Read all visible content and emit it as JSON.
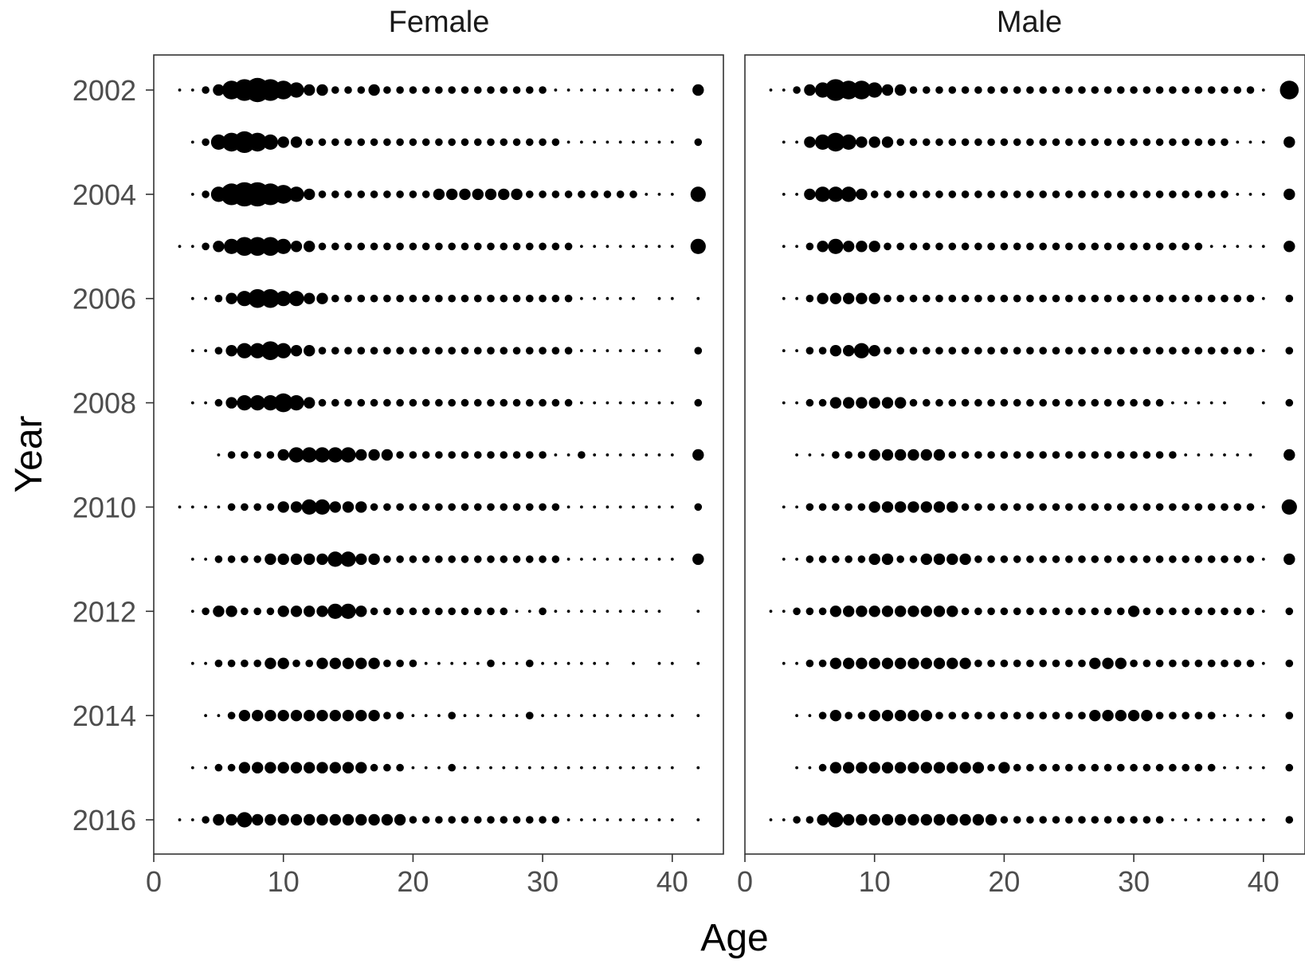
{
  "chart_data": {
    "type": "scatter",
    "subtype": "bubble-facet",
    "xlabel": "Age",
    "ylabel": "Year",
    "xlim": [
      0,
      43
    ],
    "x_ticks": [
      "0",
      "10",
      "20",
      "30",
      "40"
    ],
    "y_ticks": [
      "2002",
      "2004",
      "2006",
      "2008",
      "2010",
      "2012",
      "2014",
      "2016"
    ],
    "years": [
      2002,
      2003,
      2004,
      2005,
      2006,
      2007,
      2008,
      2009,
      2010,
      2011,
      2012,
      2013,
      2014,
      2015,
      2016
    ],
    "ages": [
      2,
      3,
      4,
      5,
      6,
      7,
      8,
      9,
      10,
      11,
      12,
      13,
      14,
      15,
      16,
      17,
      18,
      19,
      20,
      21,
      22,
      23,
      24,
      25,
      26,
      27,
      28,
      29,
      30,
      31,
      32,
      33,
      34,
      35,
      36,
      37,
      38,
      39,
      40,
      42
    ],
    "value_note": "relative proportion per age class (point size)",
    "grid": false,
    "marker_color": "#000000",
    "facets": [
      {
        "panel": "Female",
        "rows": [
          [
            1,
            1,
            2,
            3,
            5,
            6,
            7,
            6,
            5,
            4,
            3,
            3,
            2,
            2,
            2,
            3,
            2,
            2,
            2,
            2,
            2,
            2,
            2,
            2,
            2,
            2,
            2,
            2,
            2,
            1,
            1,
            1,
            1,
            1,
            1,
            1,
            1,
            1,
            1,
            3
          ],
          [
            0,
            1,
            2,
            4,
            5,
            6,
            5,
            4,
            3,
            3,
            2,
            2,
            2,
            2,
            2,
            2,
            2,
            2,
            2,
            2,
            2,
            2,
            2,
            2,
            2,
            2,
            2,
            2,
            2,
            2,
            1,
            1,
            1,
            1,
            1,
            1,
            1,
            1,
            1,
            2
          ],
          [
            0,
            1,
            2,
            4,
            6,
            7,
            7,
            6,
            5,
            4,
            3,
            2,
            2,
            2,
            2,
            2,
            2,
            2,
            2,
            2,
            3,
            3,
            3,
            3,
            3,
            3,
            3,
            2,
            2,
            2,
            2,
            2,
            2,
            2,
            2,
            2,
            1,
            1,
            1,
            4
          ],
          [
            1,
            1,
            2,
            3,
            4,
            5,
            5,
            5,
            4,
            3,
            3,
            2,
            2,
            2,
            2,
            2,
            2,
            2,
            2,
            2,
            2,
            2,
            2,
            2,
            2,
            2,
            2,
            2,
            2,
            2,
            2,
            1,
            1,
            1,
            1,
            1,
            1,
            1,
            1,
            4
          ],
          [
            0,
            1,
            1,
            2,
            3,
            4,
            5,
            5,
            4,
            4,
            3,
            3,
            2,
            2,
            2,
            2,
            2,
            2,
            2,
            2,
            2,
            2,
            2,
            2,
            2,
            2,
            2,
            2,
            2,
            2,
            2,
            1,
            1,
            1,
            1,
            1,
            0,
            1,
            1,
            1
          ],
          [
            0,
            1,
            1,
            2,
            3,
            4,
            4,
            5,
            4,
            3,
            3,
            2,
            2,
            2,
            2,
            2,
            2,
            2,
            2,
            2,
            2,
            2,
            2,
            2,
            2,
            2,
            2,
            2,
            2,
            2,
            2,
            1,
            1,
            1,
            1,
            1,
            1,
            1,
            0,
            2
          ],
          [
            0,
            1,
            1,
            2,
            3,
            4,
            4,
            4,
            5,
            4,
            3,
            2,
            2,
            2,
            2,
            2,
            2,
            2,
            2,
            2,
            2,
            2,
            2,
            2,
            2,
            2,
            2,
            2,
            2,
            2,
            2,
            1,
            1,
            1,
            1,
            1,
            1,
            1,
            1,
            2
          ],
          [
            0,
            0,
            0,
            1,
            2,
            2,
            2,
            2,
            3,
            4,
            4,
            4,
            4,
            4,
            3,
            3,
            3,
            2,
            2,
            2,
            2,
            2,
            2,
            2,
            2,
            2,
            2,
            2,
            2,
            1,
            1,
            2,
            1,
            1,
            1,
            1,
            1,
            1,
            1,
            3
          ],
          [
            1,
            1,
            1,
            1,
            2,
            2,
            2,
            2,
            3,
            3,
            4,
            4,
            3,
            3,
            3,
            2,
            2,
            2,
            2,
            2,
            2,
            2,
            2,
            2,
            2,
            2,
            2,
            2,
            2,
            2,
            1,
            1,
            1,
            1,
            1,
            1,
            1,
            1,
            1,
            2
          ],
          [
            0,
            1,
            1,
            2,
            2,
            2,
            2,
            3,
            3,
            3,
            3,
            3,
            4,
            4,
            3,
            3,
            2,
            2,
            2,
            2,
            2,
            2,
            2,
            2,
            2,
            2,
            2,
            2,
            2,
            2,
            1,
            1,
            1,
            1,
            1,
            1,
            1,
            1,
            1,
            3
          ],
          [
            0,
            1,
            2,
            3,
            3,
            2,
            2,
            2,
            3,
            3,
            3,
            3,
            4,
            4,
            3,
            2,
            2,
            2,
            2,
            2,
            2,
            2,
            2,
            2,
            2,
            2,
            1,
            1,
            2,
            1,
            1,
            1,
            1,
            1,
            1,
            1,
            1,
            1,
            0,
            1
          ],
          [
            0,
            1,
            1,
            2,
            2,
            2,
            2,
            3,
            3,
            2,
            2,
            3,
            3,
            3,
            3,
            3,
            2,
            2,
            2,
            1,
            1,
            1,
            1,
            1,
            2,
            1,
            1,
            2,
            1,
            1,
            1,
            1,
            1,
            1,
            0,
            1,
            0,
            1,
            1,
            1
          ],
          [
            0,
            0,
            1,
            1,
            2,
            3,
            3,
            3,
            3,
            3,
            3,
            3,
            3,
            3,
            3,
            3,
            2,
            2,
            1,
            1,
            1,
            2,
            1,
            1,
            1,
            1,
            1,
            2,
            1,
            1,
            1,
            1,
            1,
            1,
            1,
            1,
            1,
            1,
            1,
            1
          ],
          [
            0,
            1,
            1,
            2,
            2,
            3,
            3,
            3,
            3,
            3,
            3,
            3,
            3,
            3,
            3,
            2,
            2,
            2,
            1,
            1,
            1,
            2,
            1,
            1,
            1,
            1,
            1,
            1,
            1,
            1,
            1,
            1,
            1,
            1,
            1,
            1,
            1,
            1,
            1,
            1
          ],
          [
            1,
            1,
            2,
            3,
            3,
            4,
            3,
            3,
            3,
            3,
            3,
            3,
            3,
            3,
            3,
            3,
            3,
            3,
            2,
            2,
            2,
            2,
            2,
            2,
            2,
            2,
            2,
            2,
            2,
            2,
            1,
            1,
            1,
            1,
            1,
            1,
            1,
            1,
            1,
            1
          ]
        ]
      },
      {
        "panel": "Male",
        "rows": [
          [
            1,
            1,
            2,
            3,
            4,
            6,
            5,
            5,
            4,
            3,
            3,
            2,
            2,
            2,
            2,
            2,
            2,
            2,
            2,
            2,
            2,
            2,
            2,
            2,
            2,
            2,
            2,
            2,
            2,
            2,
            2,
            2,
            2,
            2,
            2,
            2,
            2,
            2,
            1,
            5
          ],
          [
            0,
            1,
            1,
            3,
            4,
            5,
            4,
            3,
            3,
            3,
            2,
            2,
            2,
            2,
            2,
            2,
            2,
            2,
            2,
            2,
            2,
            2,
            2,
            2,
            2,
            2,
            2,
            2,
            2,
            2,
            2,
            2,
            2,
            2,
            2,
            2,
            1,
            1,
            1,
            3
          ],
          [
            0,
            1,
            1,
            3,
            4,
            4,
            4,
            3,
            2,
            2,
            2,
            2,
            2,
            2,
            2,
            2,
            2,
            2,
            2,
            2,
            2,
            2,
            2,
            2,
            2,
            2,
            2,
            2,
            2,
            2,
            2,
            2,
            2,
            2,
            2,
            2,
            1,
            1,
            1,
            3
          ],
          [
            0,
            1,
            1,
            2,
            3,
            4,
            3,
            3,
            3,
            2,
            2,
            2,
            2,
            2,
            2,
            2,
            2,
            2,
            2,
            2,
            2,
            2,
            2,
            2,
            2,
            2,
            2,
            2,
            2,
            2,
            2,
            2,
            2,
            2,
            1,
            1,
            1,
            1,
            1,
            3
          ],
          [
            0,
            1,
            1,
            2,
            3,
            3,
            3,
            3,
            3,
            2,
            2,
            2,
            2,
            2,
            2,
            2,
            2,
            2,
            2,
            2,
            2,
            2,
            2,
            2,
            2,
            2,
            2,
            2,
            2,
            2,
            2,
            2,
            2,
            2,
            2,
            2,
            2,
            2,
            1,
            2
          ],
          [
            0,
            1,
            1,
            2,
            2,
            3,
            3,
            4,
            3,
            2,
            2,
            2,
            2,
            2,
            2,
            2,
            2,
            2,
            2,
            2,
            2,
            2,
            2,
            2,
            2,
            2,
            2,
            2,
            2,
            2,
            2,
            2,
            2,
            2,
            2,
            2,
            2,
            2,
            1,
            2
          ],
          [
            0,
            1,
            1,
            2,
            2,
            3,
            3,
            3,
            3,
            3,
            3,
            2,
            2,
            2,
            2,
            2,
            2,
            2,
            2,
            2,
            2,
            2,
            2,
            2,
            2,
            2,
            2,
            2,
            2,
            2,
            2,
            1,
            1,
            1,
            1,
            1,
            0,
            0,
            1,
            2
          ],
          [
            0,
            0,
            1,
            1,
            1,
            2,
            2,
            2,
            3,
            3,
            3,
            3,
            3,
            3,
            2,
            2,
            2,
            2,
            2,
            2,
            2,
            2,
            2,
            2,
            2,
            2,
            2,
            2,
            2,
            2,
            2,
            2,
            1,
            1,
            1,
            1,
            1,
            1,
            0,
            3
          ],
          [
            0,
            1,
            1,
            2,
            2,
            2,
            2,
            2,
            3,
            3,
            3,
            3,
            3,
            3,
            3,
            2,
            2,
            2,
            2,
            2,
            2,
            2,
            2,
            2,
            2,
            2,
            2,
            2,
            2,
            2,
            2,
            2,
            2,
            2,
            2,
            2,
            2,
            2,
            1,
            4
          ],
          [
            0,
            1,
            1,
            2,
            2,
            2,
            2,
            2,
            3,
            3,
            2,
            2,
            3,
            3,
            3,
            3,
            2,
            2,
            2,
            2,
            2,
            2,
            2,
            2,
            2,
            2,
            2,
            2,
            2,
            2,
            2,
            2,
            2,
            2,
            2,
            2,
            2,
            2,
            1,
            3
          ],
          [
            1,
            1,
            2,
            2,
            2,
            3,
            3,
            3,
            3,
            3,
            3,
            3,
            3,
            3,
            3,
            2,
            2,
            2,
            2,
            2,
            2,
            2,
            2,
            2,
            2,
            2,
            2,
            2,
            3,
            2,
            2,
            2,
            2,
            2,
            2,
            2,
            2,
            2,
            1,
            2
          ],
          [
            0,
            1,
            1,
            2,
            2,
            3,
            3,
            3,
            3,
            3,
            3,
            3,
            3,
            3,
            3,
            3,
            2,
            2,
            2,
            2,
            2,
            2,
            2,
            2,
            2,
            3,
            3,
            3,
            2,
            2,
            2,
            2,
            2,
            2,
            2,
            2,
            2,
            2,
            1,
            2
          ],
          [
            0,
            0,
            1,
            1,
            2,
            3,
            2,
            2,
            3,
            3,
            3,
            3,
            3,
            2,
            2,
            2,
            2,
            2,
            2,
            2,
            2,
            2,
            2,
            2,
            2,
            3,
            3,
            3,
            3,
            3,
            2,
            2,
            2,
            2,
            2,
            1,
            1,
            1,
            1,
            2
          ],
          [
            0,
            0,
            1,
            1,
            2,
            3,
            3,
            3,
            3,
            3,
            3,
            3,
            3,
            3,
            3,
            3,
            3,
            2,
            3,
            2,
            2,
            2,
            2,
            2,
            2,
            2,
            2,
            2,
            2,
            2,
            2,
            2,
            2,
            2,
            2,
            1,
            1,
            1,
            1,
            2
          ],
          [
            1,
            1,
            2,
            2,
            3,
            4,
            3,
            3,
            3,
            3,
            3,
            3,
            3,
            3,
            3,
            3,
            3,
            3,
            2,
            2,
            2,
            2,
            2,
            2,
            2,
            2,
            2,
            2,
            2,
            2,
            2,
            1,
            1,
            1,
            1,
            1,
            1,
            1,
            1,
            2
          ]
        ]
      }
    ]
  }
}
